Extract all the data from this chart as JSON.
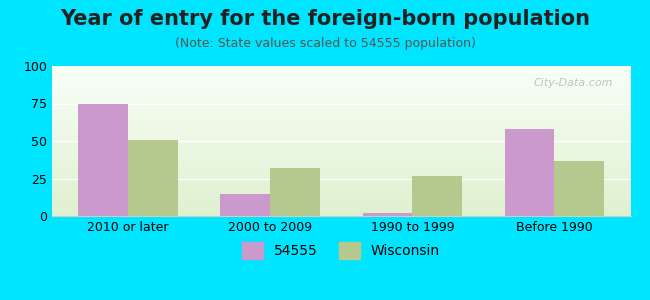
{
  "title": "Year of entry for the foreign-born population",
  "subtitle": "(Note: State values scaled to 54555 population)",
  "categories": [
    "2010 or later",
    "2000 to 2009",
    "1990 to 1999",
    "Before 1990"
  ],
  "series_54555": [
    75,
    15,
    2,
    58
  ],
  "series_wisconsin": [
    51,
    32,
    27,
    37
  ],
  "color_54555": "#cc99cc",
  "color_wisconsin": "#b5c98e",
  "ylim": [
    0,
    100
  ],
  "yticks": [
    0,
    25,
    50,
    75,
    100
  ],
  "background_outer": "#00e5ff",
  "background_inner_top": "#f0fff0",
  "background_inner_bottom": "#e8f5e8",
  "bar_width": 0.35,
  "legend_label_54555": "54555",
  "legend_label_wisconsin": "Wisconsin",
  "title_fontsize": 15,
  "subtitle_fontsize": 9,
  "tick_fontsize": 9,
  "legend_fontsize": 10
}
